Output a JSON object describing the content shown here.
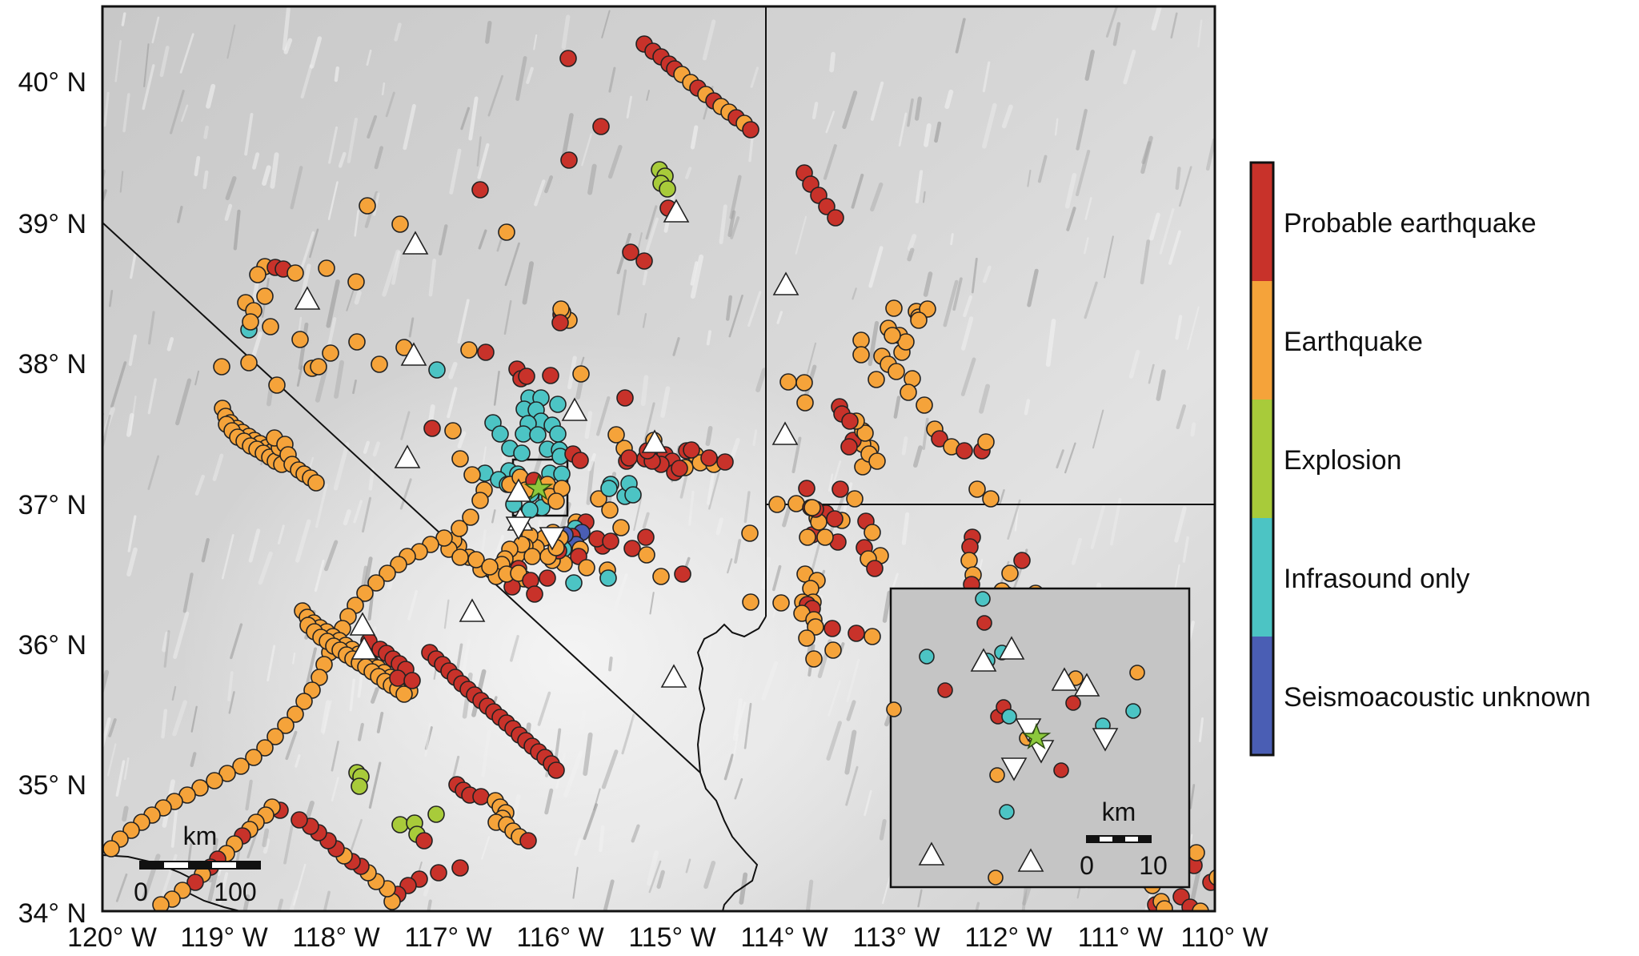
{
  "map": {
    "lon_ticks": [
      "120° W",
      "119° W",
      "118° W",
      "117° W",
      "116° W",
      "115° W",
      "114° W",
      "113° W",
      "112° W",
      "111° W",
      "110° W"
    ],
    "lat_ticks": [
      "40° N",
      "39° N",
      "38° N",
      "37° N",
      "36° N",
      "35° N",
      "34° N"
    ],
    "scale_bar": {
      "unit": "km",
      "start": "0",
      "end": "100"
    },
    "inset_scale_bar": {
      "unit": "km",
      "start": "0",
      "end": "10"
    }
  },
  "legend": {
    "categories": [
      {
        "label": "Probable earthquake",
        "color": "#c8322a"
      },
      {
        "label": "Earthquake",
        "color": "#f5a33a"
      },
      {
        "label": "Explosion",
        "color": "#a8cb3a"
      },
      {
        "label": "Infrasound only",
        "color": "#4cc4c4"
      },
      {
        "label": "Seismoacoustic unknown",
        "color": "#4a5eb4"
      }
    ]
  },
  "colors": {
    "station_marker": "#ffffff",
    "epicenter_star": "#8cc83c",
    "frame": "#111111",
    "background_terrain": "#d2d2d2"
  }
}
